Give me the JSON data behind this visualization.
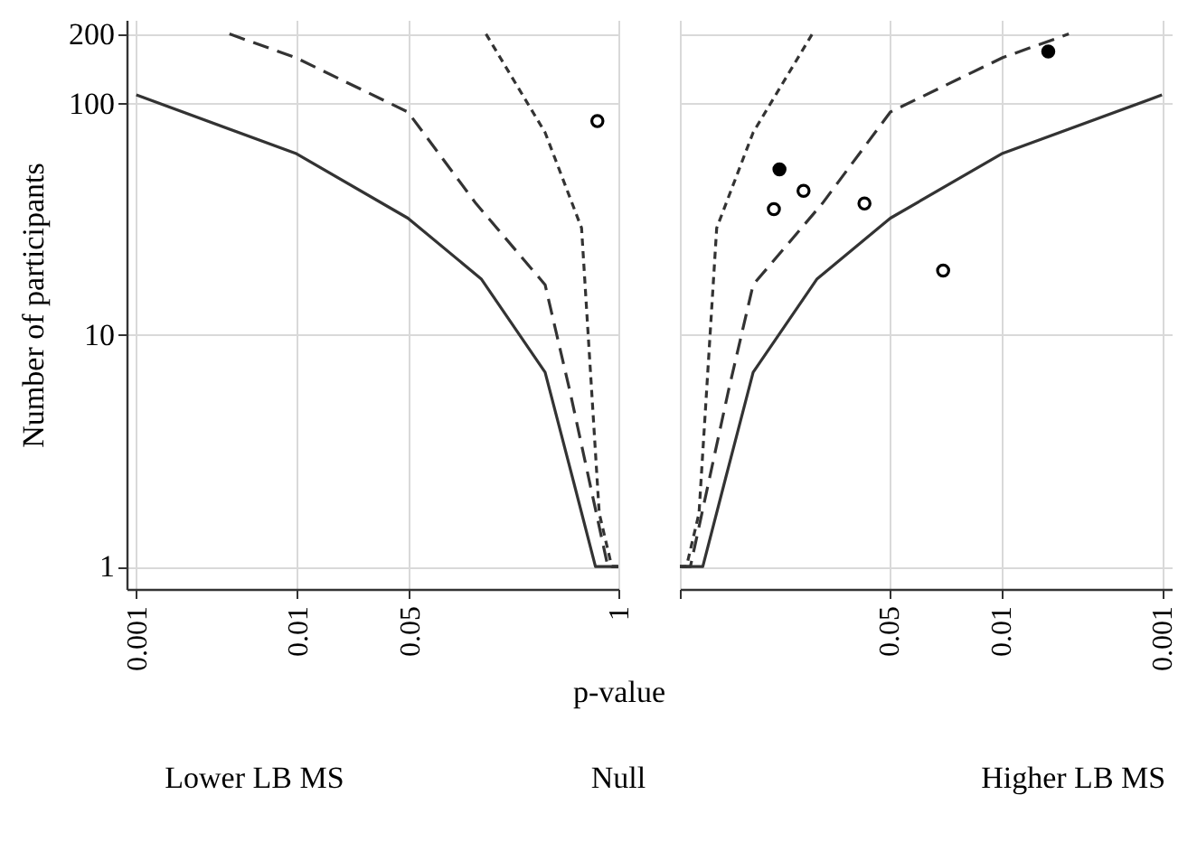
{
  "chart_data": [
    {
      "type": "line",
      "xlabel": "p-value",
      "ylabel": "Number of participants",
      "annotations": [
        "Lower LB MS",
        "Null"
      ],
      "xlim": [
        0.00087,
        1
      ],
      "xticks": [
        0.001,
        0.01,
        0.05,
        1
      ],
      "log": "xy",
      "ylim": [
        0.8,
        230
      ],
      "yticks": [
        1,
        10,
        100,
        200
      ],
      "grid": true,
      "series": [
        {
          "line_style": "solid",
          "color": "#333333",
          "x": [
            0.001,
            0.0098,
            0.049,
            0.14,
            0.35,
            0.52,
            0.72,
            1
          ],
          "values": [
            109,
            61,
            32,
            17.5,
            6.9,
            2.4,
            1,
            1
          ]
        },
        {
          "line_style": "dashed",
          "color": "#333333",
          "x": [
            0.0038,
            0.0098,
            0.049,
            0.13,
            0.35,
            0.5,
            0.86,
            1
          ],
          "values": [
            200,
            158,
            92,
            37,
            16.5,
            5.7,
            1,
            1
          ]
        },
        {
          "line_style": "dotted",
          "color": "#333333",
          "x": [
            0.15,
            0.35,
            0.59,
            0.76,
            0.91,
            1
          ],
          "values": [
            200,
            75,
            29,
            1.7,
            1,
            1
          ]
        },
        {
          "type": "scatter",
          "marker": "circle",
          "color": "#ffffff",
          "x": [
            0.74
          ],
          "values": [
            84
          ]
        }
      ]
    },
    {
      "type": "line",
      "annotations": [
        "Higher LB MS"
      ],
      "xlim": [
        1,
        0.00087
      ],
      "xticks": [
        {
          "value": 1,
          "label": null
        },
        0.05,
        0.01,
        0.001
      ],
      "log": "xy",
      "ylim": [
        0.8,
        230
      ],
      "yticks": [
        1,
        10,
        100,
        200
      ],
      "grid": true,
      "tick_labels": "x",
      "series": [
        {
          "line_style": "solid",
          "color": "#333333",
          "x": [
            1,
            0.72,
            0.52,
            0.35,
            0.14,
            0.049,
            0.0098,
            0.001
          ],
          "values": [
            1,
            1,
            2.4,
            6.9,
            17.5,
            32,
            61,
            109
          ]
        },
        {
          "line_style": "dashed",
          "color": "#333333",
          "x": [
            1,
            0.86,
            0.5,
            0.35,
            0.13,
            0.049,
            0.0098,
            0.0038
          ],
          "values": [
            1,
            1,
            5.7,
            16.5,
            37,
            92,
            158,
            200
          ]
        },
        {
          "line_style": "dotted",
          "color": "#333333",
          "x": [
            1,
            0.91,
            0.76,
            0.59,
            0.35,
            0.15
          ],
          "values": [
            1,
            1,
            1.7,
            29,
            75,
            200
          ]
        },
        {
          "type": "scatter",
          "marker": "circle",
          "color": "#ffffff",
          "x": [
            0.17,
            0.26,
            0.071,
            0.023
          ],
          "values": [
            42,
            35,
            37,
            19
          ]
        },
        {
          "type": "scatter",
          "marker": "circle",
          "color": "#000000",
          "x": [
            0.24,
            0.0051
          ],
          "values": [
            52,
            168
          ]
        }
      ]
    }
  ]
}
